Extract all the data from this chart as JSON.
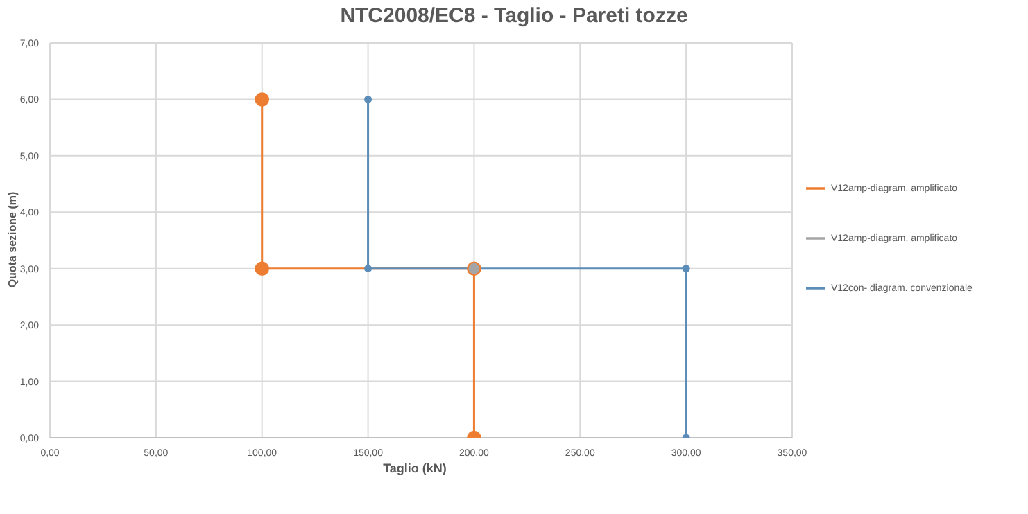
{
  "chart_data": {
    "type": "line",
    "title": "NTC2008/EC8 - Taglio - Pareti tozze",
    "xlabel": "Taglio (kN)",
    "ylabel": "Quota sezione (m)",
    "series": [
      {
        "name": "V12amp-diagram. amplificato",
        "color": "#ed7d31",
        "x": [
          100,
          100,
          200,
          200
        ],
        "values": [
          6,
          3,
          3,
          0
        ]
      },
      {
        "name": "V12amp-diagram. amplificato",
        "color": "#a5a5a5",
        "x": [
          200
        ],
        "values": [
          3
        ]
      },
      {
        "name": "V12con- diagram. convenzionale",
        "color": "#5b8db8",
        "x": [
          150,
          150,
          300,
          300
        ],
        "values": [
          6,
          3,
          3,
          0
        ]
      }
    ],
    "xlim": [
      0,
      350
    ],
    "xticks": [
      {
        "value": 0,
        "label": "0,00"
      },
      {
        "value": 50,
        "label": "50,00"
      },
      {
        "value": 100,
        "label": "100,00"
      },
      {
        "value": 150,
        "label": "150,00"
      },
      {
        "value": 200,
        "label": "200,00"
      },
      {
        "value": 250,
        "label": "250,00"
      },
      {
        "value": 300,
        "label": "300,00"
      },
      {
        "value": 350,
        "label": "350,00"
      }
    ],
    "ylim": [
      0,
      7
    ],
    "yticks": [
      {
        "value": 0,
        "label": "0,00"
      },
      {
        "value": 1,
        "label": "1,00"
      },
      {
        "value": 2,
        "label": "2,00"
      },
      {
        "value": 3,
        "label": "3,00"
      },
      {
        "value": 4,
        "label": "4,00"
      },
      {
        "value": 5,
        "label": "5,00"
      },
      {
        "value": 6,
        "label": "6,00"
      },
      {
        "value": 7,
        "label": "7,00"
      }
    ],
    "grid": true,
    "legend": "right",
    "marker": "circle",
    "line_style": "solid"
  }
}
